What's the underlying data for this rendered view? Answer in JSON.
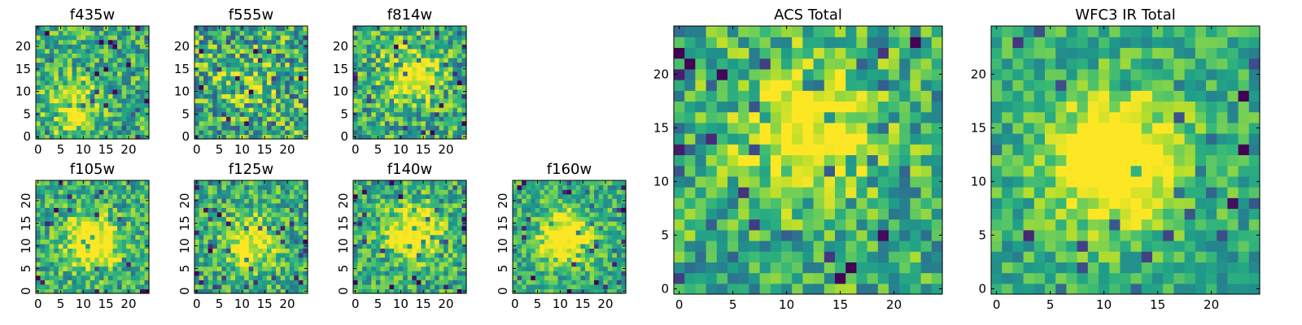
{
  "chart_data": [
    {
      "type": "heatmap",
      "title": "f435w",
      "grid_size": 25,
      "xticks": [
        0,
        5,
        10,
        15,
        20
      ],
      "yticks": [
        0,
        5,
        10,
        15,
        20
      ],
      "xlim": [
        0,
        24
      ],
      "ylim": [
        0,
        24
      ],
      "colormap": "viridis",
      "peak": [
        8,
        7
      ],
      "peak_strength": 0.45,
      "noise": 0.55,
      "seed": 11
    },
    {
      "type": "heatmap",
      "title": "f555w",
      "grid_size": 25,
      "xticks": [
        0,
        5,
        10,
        15,
        20
      ],
      "yticks": [
        0,
        5,
        10,
        15,
        20
      ],
      "xlim": [
        0,
        24
      ],
      "ylim": [
        0,
        24
      ],
      "colormap": "viridis",
      "peak": [
        12,
        12
      ],
      "peak_strength": 0.15,
      "noise": 0.7,
      "seed": 23
    },
    {
      "type": "heatmap",
      "title": "f814w",
      "grid_size": 25,
      "xticks": [
        0,
        5,
        10,
        15,
        20
      ],
      "yticks": [
        0,
        5,
        10,
        15,
        20
      ],
      "xlim": [
        0,
        24
      ],
      "ylim": [
        0,
        24
      ],
      "colormap": "viridis",
      "peak": [
        13,
        14
      ],
      "peak_strength": 0.5,
      "noise": 0.6,
      "seed": 37
    },
    {
      "type": "heatmap",
      "title": "f105w",
      "grid_size": 25,
      "xticks": [
        0,
        5,
        10,
        15,
        20
      ],
      "yticks": [
        0,
        5,
        10,
        15,
        20
      ],
      "xlim": [
        0,
        24
      ],
      "ylim": [
        0,
        24
      ],
      "colormap": "viridis",
      "peak": [
        12,
        11
      ],
      "peak_strength": 0.6,
      "noise": 0.5,
      "seed": 41
    },
    {
      "type": "heatmap",
      "title": "f125w",
      "grid_size": 25,
      "xticks": [
        0,
        5,
        10,
        15,
        20
      ],
      "yticks": [
        0,
        5,
        10,
        15,
        20
      ],
      "xlim": [
        0,
        24
      ],
      "ylim": [
        0,
        24
      ],
      "colormap": "viridis",
      "peak": [
        12,
        11
      ],
      "peak_strength": 0.45,
      "noise": 0.5,
      "seed": 53
    },
    {
      "type": "heatmap",
      "title": "f140w",
      "grid_size": 25,
      "xticks": [
        0,
        5,
        10,
        15,
        20
      ],
      "yticks": [
        0,
        5,
        10,
        15,
        20
      ],
      "xlim": [
        0,
        24
      ],
      "ylim": [
        0,
        24
      ],
      "colormap": "viridis",
      "peak": [
        13,
        13
      ],
      "peak_strength": 0.55,
      "noise": 0.5,
      "seed": 67
    },
    {
      "type": "heatmap",
      "title": "f160w",
      "grid_size": 25,
      "xticks": [
        0,
        5,
        10,
        15,
        20
      ],
      "yticks": [
        0,
        5,
        10,
        15,
        20
      ],
      "xlim": [
        0,
        24
      ],
      "ylim": [
        0,
        24
      ],
      "colormap": "viridis",
      "peak": [
        11,
        12
      ],
      "peak_strength": 0.6,
      "noise": 0.45,
      "seed": 71
    },
    {
      "type": "heatmap",
      "title": "ACS Total",
      "grid_size": 25,
      "xticks": [
        0,
        5,
        10,
        15,
        20
      ],
      "yticks": [
        0,
        5,
        10,
        15,
        20
      ],
      "xlim": [
        0,
        24
      ],
      "ylim": [
        0,
        24
      ],
      "colormap": "viridis",
      "peak": [
        12,
        15
      ],
      "peak_strength": 0.55,
      "noise": 0.55,
      "seed": 83
    },
    {
      "type": "heatmap",
      "title": "WFC3 IR Total",
      "grid_size": 25,
      "xticks": [
        0,
        5,
        10,
        15,
        20
      ],
      "yticks": [
        0,
        5,
        10,
        15,
        20
      ],
      "xlim": [
        0,
        24
      ],
      "ylim": [
        0,
        24
      ],
      "colormap": "viridis",
      "peak": [
        11,
        12
      ],
      "peak_strength": 0.75,
      "noise": 0.4,
      "seed": 97
    }
  ]
}
